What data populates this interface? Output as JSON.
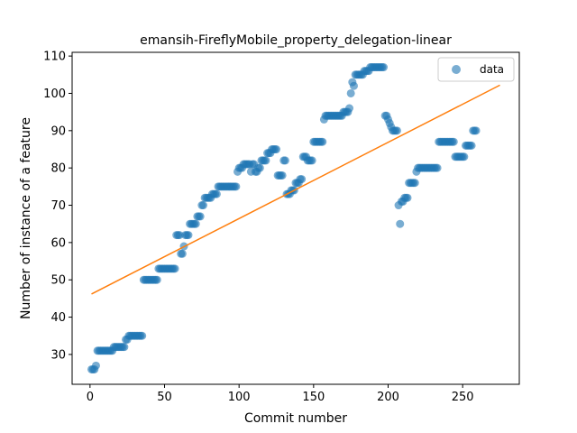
{
  "chart_data": {
    "type": "scatter",
    "title": "emansih-FireflyMobile_property_delegation-linear",
    "xlabel": "Commit number",
    "ylabel": "Number of instance of a feature",
    "xlim": [
      -12,
      288
    ],
    "ylim": [
      22,
      111
    ],
    "xticks": [
      0,
      50,
      100,
      150,
      200,
      250
    ],
    "yticks": [
      30,
      40,
      50,
      60,
      70,
      80,
      90,
      100,
      110
    ],
    "grid": false,
    "legend_position": "top-right",
    "series": [
      {
        "name": "data",
        "kind": "scatter",
        "color": "#1f77b4",
        "alpha": 0.6,
        "points": [
          [
            1,
            26
          ],
          [
            2,
            26
          ],
          [
            3,
            26
          ],
          [
            4,
            27
          ],
          [
            5,
            31
          ],
          [
            6,
            31
          ],
          [
            7,
            31
          ],
          [
            8,
            31
          ],
          [
            9,
            31
          ],
          [
            10,
            31
          ],
          [
            11,
            31
          ],
          [
            12,
            31
          ],
          [
            13,
            31
          ],
          [
            14,
            31
          ],
          [
            15,
            31
          ],
          [
            16,
            32
          ],
          [
            17,
            32
          ],
          [
            18,
            32
          ],
          [
            19,
            32
          ],
          [
            20,
            32
          ],
          [
            21,
            32
          ],
          [
            22,
            32
          ],
          [
            23,
            32
          ],
          [
            24,
            34
          ],
          [
            25,
            34
          ],
          [
            26,
            35
          ],
          [
            27,
            35
          ],
          [
            28,
            35
          ],
          [
            29,
            35
          ],
          [
            30,
            35
          ],
          [
            31,
            35
          ],
          [
            32,
            35
          ],
          [
            33,
            35
          ],
          [
            34,
            35
          ],
          [
            35,
            35
          ],
          [
            36,
            50
          ],
          [
            37,
            50
          ],
          [
            38,
            50
          ],
          [
            39,
            50
          ],
          [
            40,
            50
          ],
          [
            41,
            50
          ],
          [
            42,
            50
          ],
          [
            43,
            50
          ],
          [
            44,
            50
          ],
          [
            45,
            50
          ],
          [
            46,
            53
          ],
          [
            47,
            53
          ],
          [
            48,
            53
          ],
          [
            49,
            53
          ],
          [
            50,
            53
          ],
          [
            51,
            53
          ],
          [
            52,
            53
          ],
          [
            53,
            53
          ],
          [
            54,
            53
          ],
          [
            55,
            53
          ],
          [
            56,
            53
          ],
          [
            57,
            53
          ],
          [
            58,
            62
          ],
          [
            59,
            62
          ],
          [
            60,
            62
          ],
          [
            61,
            57
          ],
          [
            62,
            57
          ],
          [
            63,
            59
          ],
          [
            64,
            62
          ],
          [
            65,
            62
          ],
          [
            66,
            62
          ],
          [
            67,
            65
          ],
          [
            68,
            65
          ],
          [
            69,
            65
          ],
          [
            70,
            65
          ],
          [
            71,
            65
          ],
          [
            72,
            67
          ],
          [
            73,
            67
          ],
          [
            74,
            67
          ],
          [
            75,
            70
          ],
          [
            76,
            70
          ],
          [
            77,
            72
          ],
          [
            78,
            72
          ],
          [
            79,
            72
          ],
          [
            80,
            72
          ],
          [
            81,
            72
          ],
          [
            82,
            73
          ],
          [
            83,
            73
          ],
          [
            84,
            73
          ],
          [
            85,
            73
          ],
          [
            86,
            75
          ],
          [
            87,
            75
          ],
          [
            88,
            75
          ],
          [
            89,
            75
          ],
          [
            90,
            75
          ],
          [
            91,
            75
          ],
          [
            92,
            75
          ],
          [
            93,
            75
          ],
          [
            94,
            75
          ],
          [
            95,
            75
          ],
          [
            96,
            75
          ],
          [
            97,
            75
          ],
          [
            98,
            75
          ],
          [
            99,
            79
          ],
          [
            100,
            80
          ],
          [
            101,
            80
          ],
          [
            102,
            80
          ],
          [
            103,
            81
          ],
          [
            104,
            81
          ],
          [
            105,
            81
          ],
          [
            106,
            81
          ],
          [
            107,
            81
          ],
          [
            108,
            79
          ],
          [
            109,
            81
          ],
          [
            110,
            81
          ],
          [
            111,
            79
          ],
          [
            112,
            79
          ],
          [
            113,
            80
          ],
          [
            114,
            80
          ],
          [
            115,
            82
          ],
          [
            116,
            82
          ],
          [
            117,
            82
          ],
          [
            118,
            82
          ],
          [
            119,
            84
          ],
          [
            120,
            84
          ],
          [
            121,
            84
          ],
          [
            122,
            85
          ],
          [
            123,
            85
          ],
          [
            124,
            85
          ],
          [
            125,
            85
          ],
          [
            126,
            78
          ],
          [
            127,
            78
          ],
          [
            128,
            78
          ],
          [
            129,
            78
          ],
          [
            130,
            82
          ],
          [
            131,
            82
          ],
          [
            132,
            73
          ],
          [
            133,
            73
          ],
          [
            134,
            73
          ],
          [
            135,
            74
          ],
          [
            136,
            74
          ],
          [
            137,
            74
          ],
          [
            138,
            76
          ],
          [
            139,
            76
          ],
          [
            140,
            76
          ],
          [
            141,
            77
          ],
          [
            142,
            77
          ],
          [
            143,
            83
          ],
          [
            144,
            83
          ],
          [
            145,
            83
          ],
          [
            146,
            82
          ],
          [
            147,
            82
          ],
          [
            148,
            82
          ],
          [
            149,
            82
          ],
          [
            150,
            87
          ],
          [
            151,
            87
          ],
          [
            152,
            87
          ],
          [
            153,
            87
          ],
          [
            154,
            87
          ],
          [
            155,
            87
          ],
          [
            156,
            87
          ],
          [
            157,
            93
          ],
          [
            158,
            94
          ],
          [
            159,
            94
          ],
          [
            160,
            94
          ],
          [
            161,
            94
          ],
          [
            162,
            94
          ],
          [
            163,
            94
          ],
          [
            164,
            94
          ],
          [
            165,
            94
          ],
          [
            166,
            94
          ],
          [
            167,
            94
          ],
          [
            168,
            94
          ],
          [
            169,
            94
          ],
          [
            170,
            95
          ],
          [
            171,
            95
          ],
          [
            172,
            95
          ],
          [
            173,
            95
          ],
          [
            174,
            96
          ],
          [
            175,
            100
          ],
          [
            176,
            103
          ],
          [
            177,
            102
          ],
          [
            178,
            105
          ],
          [
            179,
            105
          ],
          [
            180,
            105
          ],
          [
            181,
            105
          ],
          [
            182,
            105
          ],
          [
            183,
            105
          ],
          [
            184,
            106
          ],
          [
            185,
            106
          ],
          [
            186,
            106
          ],
          [
            187,
            106
          ],
          [
            188,
            107
          ],
          [
            189,
            107
          ],
          [
            190,
            107
          ],
          [
            191,
            107
          ],
          [
            192,
            107
          ],
          [
            193,
            107
          ],
          [
            194,
            107
          ],
          [
            195,
            107
          ],
          [
            196,
            107
          ],
          [
            197,
            107
          ],
          [
            198,
            94
          ],
          [
            199,
            94
          ],
          [
            200,
            93
          ],
          [
            201,
            92
          ],
          [
            202,
            91
          ],
          [
            203,
            90
          ],
          [
            204,
            90
          ],
          [
            205,
            90
          ],
          [
            206,
            90
          ],
          [
            207,
            70
          ],
          [
            208,
            65
          ],
          [
            209,
            71
          ],
          [
            210,
            71
          ],
          [
            211,
            72
          ],
          [
            212,
            72
          ],
          [
            213,
            72
          ],
          [
            214,
            76
          ],
          [
            215,
            76
          ],
          [
            216,
            76
          ],
          [
            217,
            76
          ],
          [
            218,
            76
          ],
          [
            219,
            79
          ],
          [
            220,
            80
          ],
          [
            221,
            80
          ],
          [
            222,
            80
          ],
          [
            223,
            80
          ],
          [
            224,
            80
          ],
          [
            225,
            80
          ],
          [
            226,
            80
          ],
          [
            227,
            80
          ],
          [
            228,
            80
          ],
          [
            229,
            80
          ],
          [
            230,
            80
          ],
          [
            231,
            80
          ],
          [
            232,
            80
          ],
          [
            233,
            80
          ],
          [
            234,
            87
          ],
          [
            235,
            87
          ],
          [
            236,
            87
          ],
          [
            237,
            87
          ],
          [
            238,
            87
          ],
          [
            239,
            87
          ],
          [
            240,
            87
          ],
          [
            241,
            87
          ],
          [
            242,
            87
          ],
          [
            243,
            87
          ],
          [
            244,
            87
          ],
          [
            245,
            83
          ],
          [
            246,
            83
          ],
          [
            247,
            83
          ],
          [
            248,
            83
          ],
          [
            249,
            83
          ],
          [
            250,
            83
          ],
          [
            251,
            83
          ],
          [
            252,
            86
          ],
          [
            253,
            86
          ],
          [
            254,
            86
          ],
          [
            255,
            86
          ],
          [
            256,
            86
          ],
          [
            257,
            90
          ],
          [
            258,
            90
          ],
          [
            259,
            90
          ]
        ]
      },
      {
        "name": "",
        "kind": "line",
        "color": "#ff7f0e",
        "points": [
          [
            1,
            46.2
          ],
          [
            275,
            102.2
          ]
        ]
      }
    ]
  }
}
